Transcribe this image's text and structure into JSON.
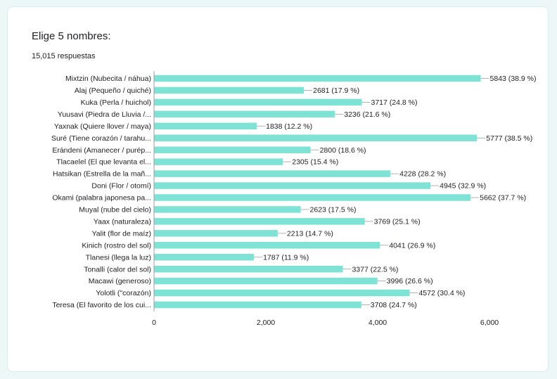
{
  "form": {
    "question": "Elige 5 nombres:",
    "responses": "15,015 respuestas"
  },
  "colors": {
    "bar": "#7ee3d5",
    "axis": "#9e9e9e",
    "leader": "#9e9e9e"
  },
  "chart_data": {
    "type": "bar",
    "orientation": "horizontal",
    "categories": [
      "Mixtzin (Nubecita / náhua)",
      "Alaj (Pequeño / quiché)",
      "Kuka (Perla / huichol)",
      "Yuusavi (Piedra de Lluvia /...",
      "Yaxnak (Quiere llover / maya)",
      "Suré (Tiene corazón / tarahu...",
      "Erándeni (Amanecer / purép...",
      "Tlacaelel (El que levanta el...",
      "Hatsikan (Estrella de la mañ...",
      "Doni (Flor / otomí)",
      "Okami (palabra japonesa pa...",
      "Muyal (nube del cielo)",
      "Yaax (naturaleza)",
      "Yalit (flor de maíz)",
      "Kinich (rostro del sol)",
      "Tlanesi (llega la luz)",
      "Tonalli (calor del sol)",
      "Macawi (generoso)",
      "Yolotli (\"corazón)",
      "Teresa (El favorito de los cui..."
    ],
    "values": [
      5843,
      2681,
      3717,
      3236,
      1838,
      5777,
      2800,
      2305,
      4228,
      4945,
      5662,
      2623,
      3769,
      2213,
      4041,
      1787,
      3377,
      3996,
      4572,
      3708
    ],
    "data_labels": [
      "5843 (38.9 %)",
      "2681 (17.9 %)",
      "3717 (24.8 %)",
      "3236 (21.6 %)",
      "1838 (12.2 %)",
      "5777 (38.5 %)",
      "2800 (18.6 %)",
      "2305 (15.4 %)",
      "4228 (28.2 %)",
      "4945 (32.9 %)",
      "5662 (37.7 %)",
      "2623 (17.5 %)",
      "3769 (25.1 %)",
      "2213 (14.7 %)",
      "4041 (26.9 %)",
      "1787 (11.9 %)",
      "3377 (22.5 %)",
      "3996 (26.6 %)",
      "4572 (30.4 %)",
      "3708 (24.7 %)"
    ],
    "xlim": [
      0,
      6000
    ],
    "xticks": [
      0,
      2000,
      4000,
      6000
    ],
    "xtick_labels": [
      "0",
      "2,000",
      "4,000",
      "6,000"
    ],
    "grid": false,
    "legend": "none"
  }
}
